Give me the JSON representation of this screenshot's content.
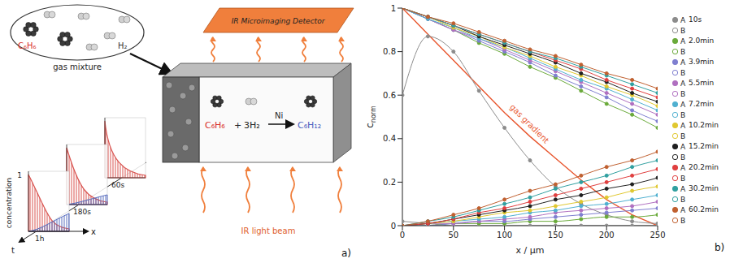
{
  "chart_data": {
    "type": "line",
    "x_label": "x / µm",
    "y_label": "c",
    "y_label_sub": "norm",
    "xlim": [
      0,
      250
    ],
    "xticks": [
      0,
      50,
      100,
      150,
      200,
      250
    ],
    "ylim": [
      0,
      1
    ],
    "yticks": [
      0,
      0.2,
      0.4,
      0.6,
      0.8,
      1
    ],
    "marker": "circle",
    "legend": "right",
    "runs": [
      "A",
      "B"
    ],
    "x": [
      0,
      25,
      50,
      75,
      100,
      125,
      150,
      175,
      200,
      225,
      250
    ],
    "series": [
      {
        "name": "10s",
        "color": "#8c8c8c",
        "c6h6": [
          0.6,
          0.87,
          0.8,
          0.62,
          0.45,
          0.3,
          0.18,
          0.1,
          0.05,
          0.02,
          0.01
        ],
        "c6h12": [
          0.02,
          0.01,
          0,
          0,
          0,
          0,
          0,
          0,
          0,
          0,
          0
        ]
      },
      {
        "name": "2.0min",
        "color": "#6aaa3a",
        "c6h6": [
          1,
          0.95,
          0.9,
          0.84,
          0.79,
          0.73,
          0.68,
          0.62,
          0.56,
          0.51,
          0.45
        ],
        "c6h12": [
          0,
          0,
          0.01,
          0.01,
          0.01,
          0.02,
          0.02,
          0.03,
          0.04,
          0.04,
          0.05
        ]
      },
      {
        "name": "3.9min",
        "color": "#7f7fd0",
        "c6h6": [
          1,
          0.95,
          0.9,
          0.85,
          0.8,
          0.75,
          0.69,
          0.64,
          0.59,
          0.53,
          0.48
        ],
        "c6h12": [
          0,
          0,
          0.01,
          0.02,
          0.02,
          0.03,
          0.04,
          0.05,
          0.06,
          0.07,
          0.08
        ]
      },
      {
        "name": "5.5min",
        "color": "#b070c0",
        "c6h6": [
          1,
          0.95,
          0.9,
          0.86,
          0.81,
          0.76,
          0.71,
          0.66,
          0.61,
          0.56,
          0.51
        ],
        "c6h12": [
          0,
          0.01,
          0.01,
          0.02,
          0.03,
          0.04,
          0.06,
          0.07,
          0.08,
          0.09,
          0.11
        ]
      },
      {
        "name": "7.2min",
        "color": "#50b0d0",
        "c6h6": [
          1,
          0.95,
          0.91,
          0.86,
          0.82,
          0.77,
          0.72,
          0.67,
          0.63,
          0.58,
          0.53
        ],
        "c6h12": [
          0,
          0.01,
          0.02,
          0.03,
          0.04,
          0.06,
          0.07,
          0.09,
          0.1,
          0.12,
          0.14
        ]
      },
      {
        "name": "10.2min",
        "color": "#e0c830",
        "c6h6": [
          1,
          0.96,
          0.91,
          0.87,
          0.82,
          0.78,
          0.73,
          0.69,
          0.64,
          0.6,
          0.55
        ],
        "c6h12": [
          0,
          0.01,
          0.02,
          0.04,
          0.06,
          0.07,
          0.09,
          0.11,
          0.13,
          0.16,
          0.18
        ]
      },
      {
        "name": "15.2min",
        "color": "#202020",
        "c6h6": [
          1,
          0.96,
          0.92,
          0.87,
          0.83,
          0.79,
          0.75,
          0.7,
          0.66,
          0.61,
          0.57
        ],
        "c6h12": [
          0,
          0.01,
          0.03,
          0.05,
          0.07,
          0.09,
          0.12,
          0.14,
          0.17,
          0.19,
          0.22
        ]
      },
      {
        "name": "20.2min",
        "color": "#e04040",
        "c6h6": [
          1,
          0.96,
          0.92,
          0.88,
          0.84,
          0.8,
          0.76,
          0.72,
          0.67,
          0.63,
          0.59
        ],
        "c6h12": [
          0,
          0.01,
          0.03,
          0.06,
          0.08,
          0.11,
          0.14,
          0.17,
          0.2,
          0.23,
          0.26
        ]
      },
      {
        "name": "30.2min",
        "color": "#30a0a0",
        "c6h6": [
          1,
          0.96,
          0.92,
          0.88,
          0.84,
          0.8,
          0.77,
          0.73,
          0.69,
          0.65,
          0.61
        ],
        "c6h12": [
          0,
          0.02,
          0.04,
          0.07,
          0.1,
          0.13,
          0.17,
          0.2,
          0.23,
          0.27,
          0.3
        ]
      },
      {
        "name": "60.2min",
        "color": "#c06030",
        "c6h6": [
          1,
          0.96,
          0.93,
          0.89,
          0.85,
          0.81,
          0.78,
          0.74,
          0.7,
          0.67,
          0.63
        ],
        "c6h12": [
          0,
          0.02,
          0.05,
          0.08,
          0.12,
          0.16,
          0.19,
          0.23,
          0.27,
          0.3,
          0.34
        ]
      }
    ],
    "gradient": {
      "name": "gas gradient",
      "color": "#e8562e",
      "values": [
        1,
        0.88,
        0.76,
        0.64,
        0.52,
        0.41,
        0.31,
        0.21,
        0.12,
        0.05,
        0
      ]
    },
    "panel": "b)"
  },
  "diagram": {
    "gas": {
      "molecules": [
        "C₆H₆",
        "H₂"
      ],
      "label": "gas mixture"
    },
    "detector": "IR Microimaging Detector",
    "reaction": {
      "reactant": "C₆H₆",
      "plus": "+",
      "hydrogen": "3H₂",
      "catalyst": "Ni",
      "product": "C₆H₁₂"
    },
    "light": "IR light beam",
    "profile": {
      "y_label": "concentration",
      "y_tick": "1",
      "t_label": "t",
      "x_label": "x",
      "times": [
        "1h",
        "180s",
        "60s"
      ]
    },
    "panel": "a)"
  }
}
